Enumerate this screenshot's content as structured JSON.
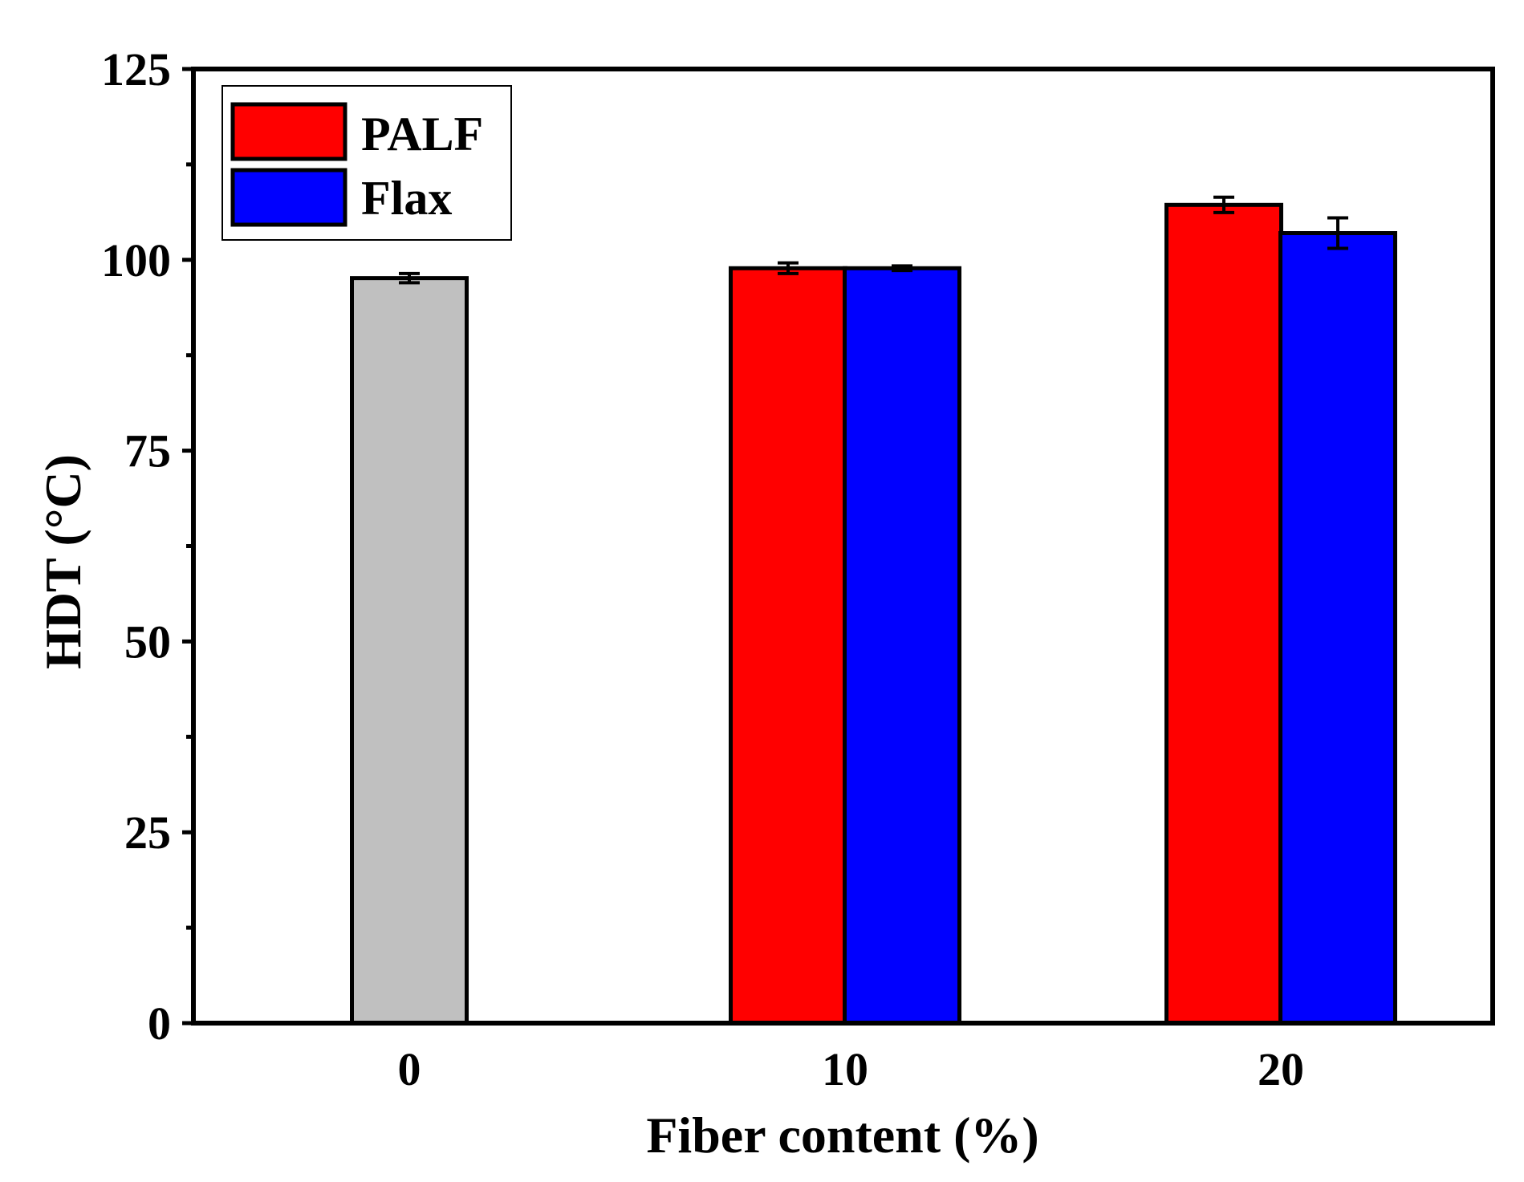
{
  "chart_data": {
    "type": "bar",
    "title": "",
    "xlabel": "Fiber content (%)",
    "ylabel": "HDT (°C)",
    "categories": [
      "0",
      "10",
      "20"
    ],
    "ylim": [
      0,
      125
    ],
    "yticks": [
      0,
      25,
      50,
      75,
      100,
      125
    ],
    "grid": false,
    "legend_position": "top-left",
    "legend": [
      {
        "name": "PALF",
        "color": "#ff0000"
      },
      {
        "name": "Flax",
        "color": "#0000ff"
      }
    ],
    "neat_color": "#c0c0c0",
    "bars": [
      {
        "category": "0",
        "series": "",
        "value": 97.6,
        "error": 0.6,
        "color": "#c0c0c0"
      },
      {
        "category": "10",
        "series": "PALF",
        "value": 98.9,
        "error": 0.7,
        "color": "#ff0000"
      },
      {
        "category": "10",
        "series": "Flax",
        "value": 98.9,
        "error": 0.3,
        "color": "#0000ff"
      },
      {
        "category": "20",
        "series": "PALF",
        "value": 107.2,
        "error": 1.0,
        "color": "#ff0000"
      },
      {
        "category": "20",
        "series": "Flax",
        "value": 103.5,
        "error": 2.0,
        "color": "#0000ff"
      }
    ]
  }
}
